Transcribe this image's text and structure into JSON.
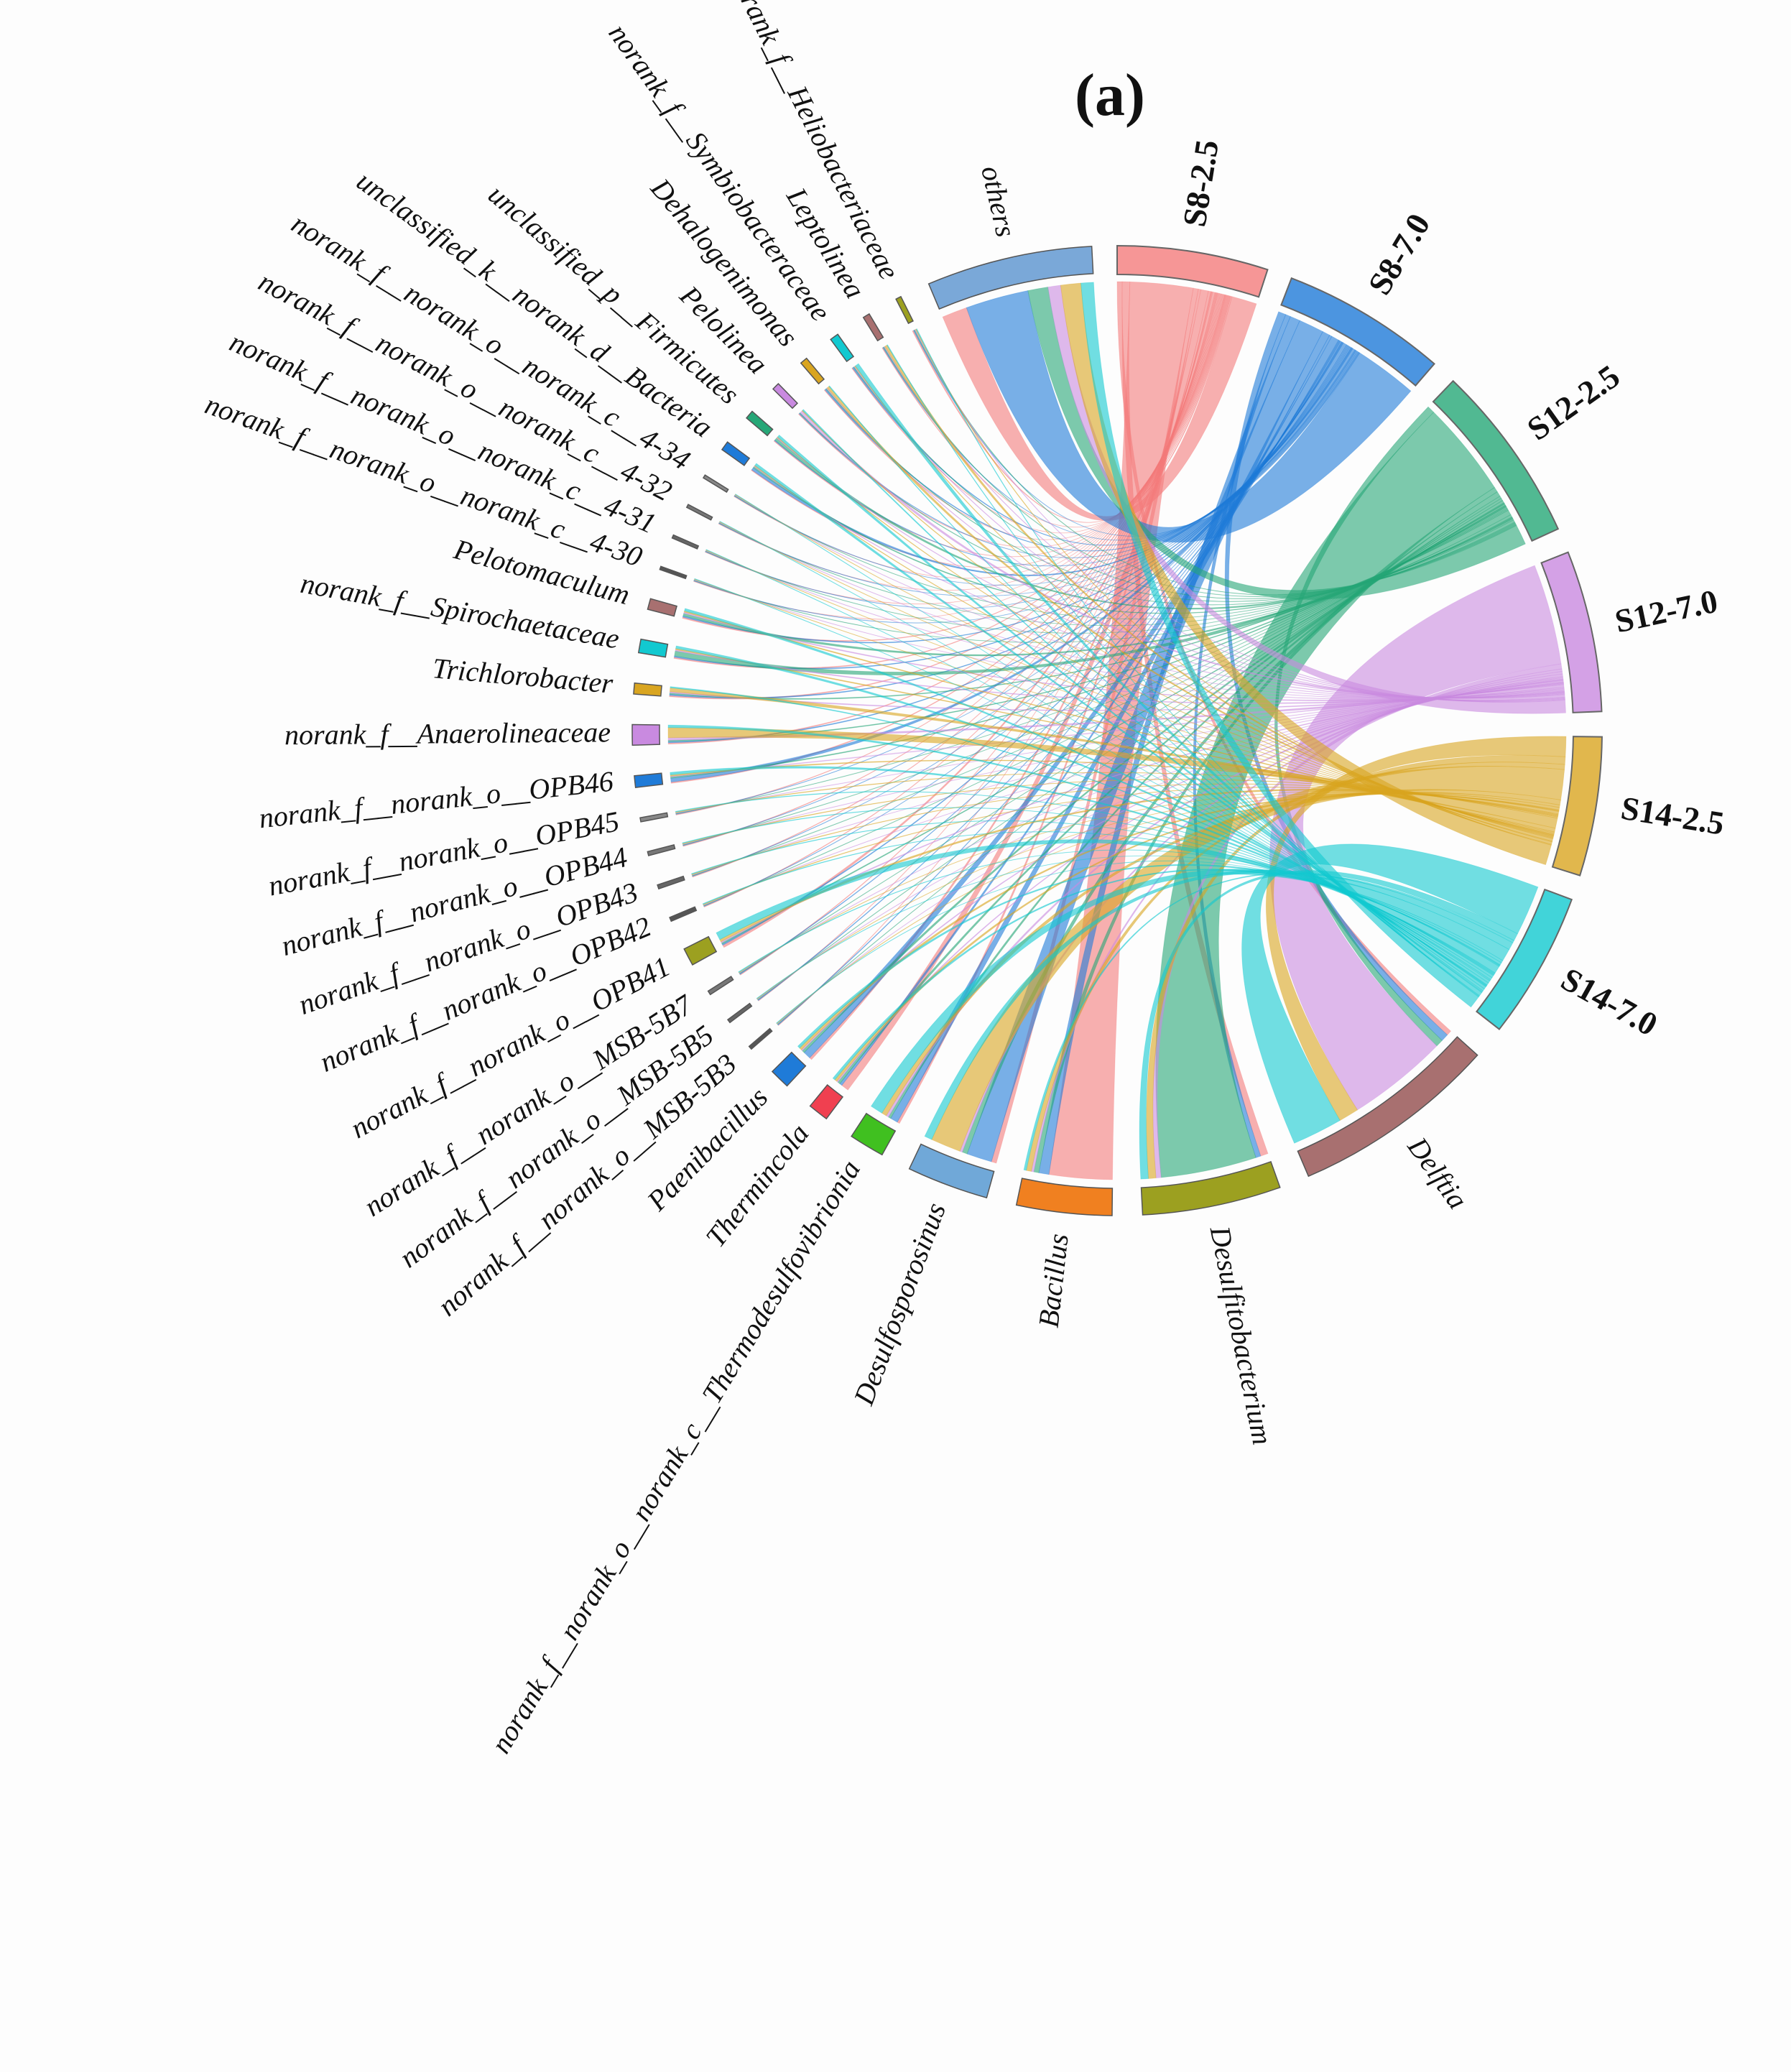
{
  "chart_data": {
    "type": "chord",
    "title": "(a)",
    "categories": [
      "S8-2.5",
      "S8-7.0",
      "S12-2.5",
      "S12-7.0",
      "S14-2.5",
      "S14-7.0"
    ],
    "category_colors": [
      "#f47c7c",
      "#1f7bd8",
      "#26a777",
      "#c98ae0",
      "#d9a520",
      "#12c9d0"
    ],
    "series": [
      {
        "name": "Delftia",
        "color": "#a87070",
        "values": [
          2,
          3,
          3,
          40,
          8,
          20
        ]
      },
      {
        "name": "Desulfitobacterium",
        "color": "#9ca020",
        "values": [
          3,
          2,
          38,
          2,
          3,
          3
        ]
      },
      {
        "name": "Bacillus",
        "color": "#f08020",
        "values": [
          25,
          4,
          2,
          1,
          2,
          1
        ]
      },
      {
        "name": "Desulfosporosinus",
        "color": "#70a8d8",
        "values": [
          2,
          10,
          2,
          1,
          12,
          3
        ]
      },
      {
        "name": "norank_f__norank_o__norank_c__Thermodesulfovibrionia",
        "color": "#40c020",
        "values": [
          1,
          3,
          1,
          1,
          2,
          5
        ]
      },
      {
        "name": "Thermincola",
        "color": "#f04050",
        "values": [
          3,
          1,
          1,
          0.5,
          1,
          1
        ]
      },
      {
        "name": "Paenibacillus",
        "color": "#1f7bd8",
        "values": [
          1,
          3,
          1,
          0.5,
          1,
          1
        ]
      },
      {
        "name": "norank_f__norank_o__MSB-5B3",
        "color": "#555555",
        "values": [
          0.2,
          0.3,
          0.2,
          0.2,
          0.2,
          0.2
        ]
      },
      {
        "name": "norank_f__norank_o__MSB-5B5",
        "color": "#666666",
        "values": [
          0.2,
          0.3,
          0.2,
          0.2,
          0.2,
          0.2
        ]
      },
      {
        "name": "norank_f__norank_o__MSB-5B7",
        "color": "#777777",
        "values": [
          0.3,
          0.3,
          0.2,
          0.2,
          0.2,
          0.3
        ]
      },
      {
        "name": "norank_f__norank_o__OPB41",
        "color": "#9ca020",
        "values": [
          1,
          0.5,
          0.5,
          0.5,
          1,
          3
        ]
      },
      {
        "name": "norank_f__norank_o__OPB42",
        "color": "#555555",
        "values": [
          0.3,
          0.2,
          0.2,
          0.2,
          0.3,
          0.3
        ]
      },
      {
        "name": "norank_f__norank_o__OPB43",
        "color": "#666666",
        "values": [
          0.3,
          0.2,
          0.2,
          0.2,
          0.3,
          0.3
        ]
      },
      {
        "name": "norank_f__norank_o__OPB44",
        "color": "#777777",
        "values": [
          0.3,
          0.2,
          0.2,
          0.2,
          0.3,
          0.3
        ]
      },
      {
        "name": "norank_f__norank_o__OPB45",
        "color": "#888888",
        "values": [
          0.3,
          0.2,
          0.2,
          0.2,
          0.3,
          0.3
        ]
      },
      {
        "name": "norank_f__norank_o__OPB46",
        "color": "#1f7bd8",
        "values": [
          0.5,
          1.5,
          0.5,
          0.3,
          0.5,
          1
        ]
      },
      {
        "name": "norank_f__Anaerolineaceae",
        "color": "#c98ae0",
        "values": [
          0.5,
          0.5,
          0.5,
          1,
          4,
          1
        ]
      },
      {
        "name": "Trichlorobacter",
        "color": "#d9a520",
        "values": [
          0.5,
          0.5,
          0.5,
          0.5,
          1.5,
          0.5
        ]
      },
      {
        "name": "norank_f__Spirochaetaceae",
        "color": "#12c9d0",
        "values": [
          0.5,
          0.5,
          2,
          0.5,
          0.5,
          1
        ]
      },
      {
        "name": "Pelotomaculum",
        "color": "#a87070",
        "values": [
          0.5,
          0.5,
          1,
          0.5,
          0.5,
          1
        ]
      },
      {
        "name": "norank_f__norank_o__norank_c__4-30",
        "color": "#555555",
        "values": [
          0.2,
          0.2,
          0.2,
          0.2,
          0.2,
          0.2
        ]
      },
      {
        "name": "norank_f__norank_o__norank_c__4-31",
        "color": "#666666",
        "values": [
          0.2,
          0.2,
          0.2,
          0.2,
          0.2,
          0.2
        ]
      },
      {
        "name": "norank_f__norank_o__norank_c__4-32",
        "color": "#777777",
        "values": [
          0.2,
          0.2,
          0.2,
          0.2,
          0.2,
          0.2
        ]
      },
      {
        "name": "norank_f__norank_o__norank_c__4-34",
        "color": "#888888",
        "values": [
          0.2,
          0.2,
          0.2,
          0.2,
          0.2,
          0.2
        ]
      },
      {
        "name": "unclassified_k__norank_d__Bacteria",
        "color": "#1f7bd8",
        "values": [
          0.3,
          1,
          0.5,
          0.3,
          0.3,
          1
        ]
      },
      {
        "name": "unclassified_p__Firmicutes",
        "color": "#26a777",
        "values": [
          0.3,
          0.3,
          1,
          0.3,
          0.3,
          1
        ]
      },
      {
        "name": "Pelolinea",
        "color": "#c98ae0",
        "values": [
          0.3,
          0.3,
          0.3,
          1,
          0.3,
          0.5
        ]
      },
      {
        "name": "Dehalogenimonas",
        "color": "#d9a520",
        "values": [
          0.3,
          0.5,
          0.3,
          0.3,
          1,
          0.3
        ]
      },
      {
        "name": "norank_f__Symbiobacteraceae",
        "color": "#12c9d0",
        "values": [
          0.3,
          0.5,
          0.3,
          0.3,
          0.3,
          1.5
        ]
      },
      {
        "name": "Leptolinea",
        "color": "#a87070",
        "values": [
          0.3,
          0.3,
          0.3,
          0.3,
          1,
          0.3
        ]
      },
      {
        "name": "norank_f__Heliobacteriaceae",
        "color": "#9ca020",
        "values": [
          0.5,
          0.3,
          0.3,
          0.3,
          0.3,
          0.3
        ]
      },
      {
        "name": "others",
        "color": "#7aa8d8",
        "values": [
          10,
          25,
          8,
          5,
          8,
          5
        ]
      }
    ]
  }
}
